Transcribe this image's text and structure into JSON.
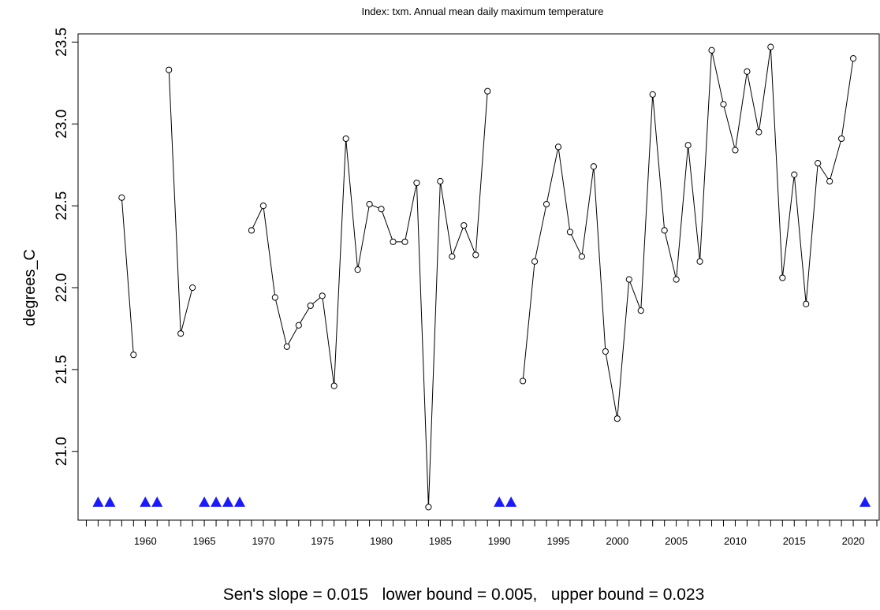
{
  "chart_data": {
    "type": "line",
    "title": "Index: txm. Annual mean daily maximum temperature",
    "xlabel": "",
    "ylabel": "degrees_C",
    "footer": "Sen's slope = 0.015   lower bound = 0.005,   upper bound = 0.023",
    "xlim": [
      1954.3,
      2022.2
    ],
    "ylim": [
      20.58,
      23.55
    ],
    "x_ticks": [
      1960,
      1965,
      1970,
      1975,
      1980,
      1985,
      1990,
      1995,
      2000,
      2005,
      2010,
      2015,
      2020
    ],
    "y_ticks": [
      21.0,
      21.5,
      22.0,
      22.5,
      23.0,
      23.5
    ],
    "y_tick_labels": [
      "21.0",
      "21.5",
      "22.0",
      "22.5",
      "23.0",
      "23.5"
    ],
    "grid": false,
    "series": [
      {
        "line_color": "#000000",
        "marker": "open-circle",
        "points": [
          [
            1958,
            22.55
          ],
          [
            1959,
            21.59
          ],
          [
            1960,
            null
          ],
          [
            1961,
            null
          ],
          [
            1962,
            23.33
          ],
          [
            1963,
            21.72
          ],
          [
            1964,
            22.0
          ],
          [
            1965,
            null
          ],
          [
            1966,
            null
          ],
          [
            1967,
            null
          ],
          [
            1968,
            null
          ],
          [
            1969,
            22.35
          ],
          [
            1970,
            22.5
          ],
          [
            1971,
            21.94
          ],
          [
            1972,
            21.64
          ],
          [
            1973,
            21.77
          ],
          [
            1974,
            21.89
          ],
          [
            1975,
            21.95
          ],
          [
            1976,
            21.4
          ],
          [
            1977,
            22.91
          ],
          [
            1978,
            22.11
          ],
          [
            1979,
            22.51
          ],
          [
            1980,
            22.48
          ],
          [
            1981,
            22.28
          ],
          [
            1982,
            22.28
          ],
          [
            1983,
            22.64
          ],
          [
            1984,
            20.66
          ],
          [
            1985,
            22.65
          ],
          [
            1986,
            22.19
          ],
          [
            1987,
            22.38
          ],
          [
            1988,
            22.2
          ],
          [
            1989,
            23.2
          ],
          [
            1990,
            null
          ],
          [
            1991,
            null
          ],
          [
            1992,
            21.43
          ],
          [
            1993,
            22.16
          ],
          [
            1994,
            22.51
          ],
          [
            1995,
            22.86
          ],
          [
            1996,
            22.34
          ],
          [
            1997,
            22.19
          ],
          [
            1998,
            22.74
          ],
          [
            1999,
            21.61
          ],
          [
            2000,
            21.2
          ],
          [
            2001,
            22.05
          ],
          [
            2002,
            21.86
          ],
          [
            2003,
            23.18
          ],
          [
            2004,
            22.35
          ],
          [
            2005,
            22.05
          ],
          [
            2006,
            22.87
          ],
          [
            2007,
            22.16
          ],
          [
            2008,
            23.45
          ],
          [
            2009,
            23.12
          ],
          [
            2010,
            22.84
          ],
          [
            2011,
            23.32
          ],
          [
            2012,
            22.95
          ],
          [
            2013,
            23.47
          ],
          [
            2014,
            22.06
          ],
          [
            2015,
            22.69
          ],
          [
            2016,
            21.9
          ],
          [
            2017,
            22.76
          ],
          [
            2018,
            22.65
          ],
          [
            2019,
            22.91
          ],
          [
            2020,
            23.4
          ]
        ]
      }
    ],
    "missing_years": [
      1956,
      1957,
      1960,
      1961,
      1965,
      1966,
      1967,
      1968,
      1990,
      1991,
      2021
    ],
    "missing_marker": {
      "shape": "filled-triangle",
      "color": "#1a1aff"
    }
  }
}
